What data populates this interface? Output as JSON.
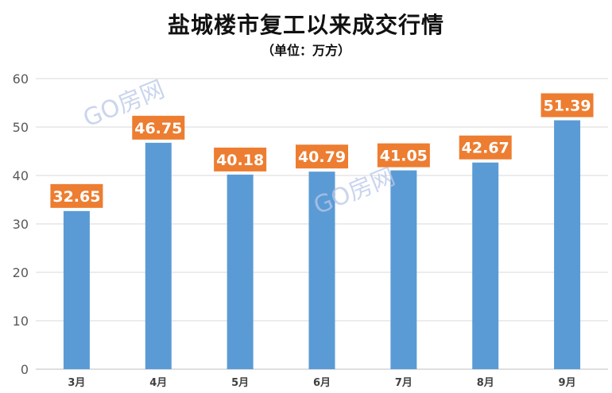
{
  "chart_data": {
    "type": "bar",
    "title": "盐城楼市复工以来成交行情",
    "subtitle": "（单位：万方）",
    "categories": [
      "3月",
      "4月",
      "5月",
      "6月",
      "7月",
      "8月",
      "9月"
    ],
    "values": [
      32.65,
      46.75,
      40.18,
      40.79,
      41.05,
      42.67,
      51.39
    ],
    "data_labels": [
      "32.65",
      "46.75",
      "40.18",
      "40.79",
      "41.05",
      "42.67",
      "51.39"
    ],
    "y_ticks": [
      "0",
      "10",
      "20",
      "30",
      "40",
      "50",
      "60"
    ],
    "ylim": [
      0,
      60
    ],
    "grid": true,
    "legend": "none",
    "bar_color": "#5b9bd5",
    "label_bg_color": "#ed7d31",
    "label_text_color": "#ffffff"
  },
  "watermark": {
    "text": "GO房网"
  }
}
